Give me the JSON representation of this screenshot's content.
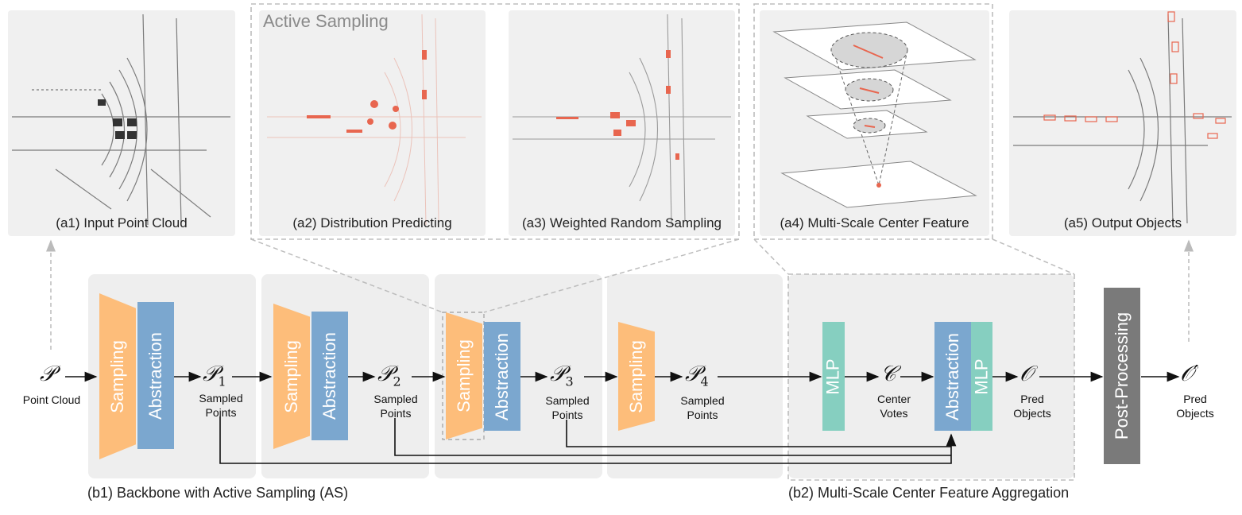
{
  "panels": {
    "a1": "(a1) Input Point Cloud",
    "a2": "(a2) Distribution Predicting",
    "a3": "(a3) Weighted Random Sampling",
    "a4": "(a4) Multi-Scale Center Feature",
    "a5": "(a5) Output Objects"
  },
  "active_sampling_title": "Active Sampling",
  "blocks": {
    "sampling": "Sampling",
    "abstraction": "Abstraction",
    "mlp": "MLP",
    "post_processing": "Post-Processing"
  },
  "symbols": {
    "P": "𝒫",
    "P1": "𝒫",
    "P2": "𝒫",
    "P3": "𝒫",
    "P4": "𝒫",
    "C": "𝒞",
    "O": "𝒪",
    "Oprime": "𝒪′",
    "sub1": "1",
    "sub2": "2",
    "sub3": "3",
    "sub4": "4"
  },
  "labels": {
    "point_cloud": "Point Cloud",
    "sampled_points_line1": "Sampled",
    "sampled_points_line2": "Points",
    "center_line1": "Center",
    "center_line2": "Votes",
    "pred_line1": "Pred",
    "pred_line2": "Objects"
  },
  "captions": {
    "b1": "(b1) Backbone with Active Sampling (AS)",
    "b2": "(b2) Multi-Scale Center Feature Aggregation"
  },
  "colors": {
    "sampling": "#fdbd7a",
    "abstraction": "#7ba7cf",
    "mlp": "#86cfc0",
    "post": "#7a7a7a",
    "highlight": "#e8664f"
  }
}
